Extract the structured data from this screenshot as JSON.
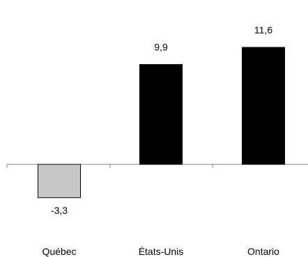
{
  "chart_data": {
    "type": "bar",
    "categories": [
      "Québec",
      "États-Unis",
      "Ontario"
    ],
    "values": [
      -3.3,
      9.9,
      11.6
    ],
    "value_labels": [
      "-3,3",
      "9,9",
      "11,6"
    ],
    "colors": [
      "#c8c8c8",
      "#000000",
      "#000000"
    ],
    "title": "",
    "xlabel": "",
    "ylabel": "",
    "grid": false,
    "legend": "none"
  }
}
